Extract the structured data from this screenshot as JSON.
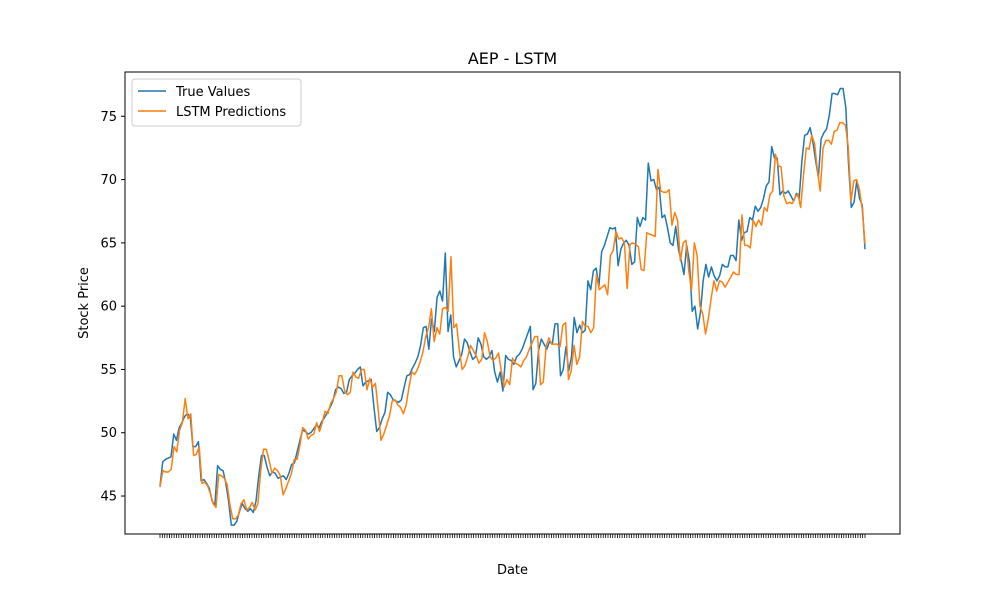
{
  "chart_data": {
    "type": "line",
    "title": "AEP - LSTM",
    "xlabel": "Date",
    "ylabel": "Stock Price",
    "ylim": [
      42.0,
      78.5
    ],
    "yticks": [
      45,
      50,
      55,
      60,
      65,
      70,
      75
    ],
    "grid": false,
    "legend_position": "top-left",
    "x_tick_count": 300,
    "series": [
      {
        "name": "True Values",
        "color": "#1f77b4",
        "values": [
          45.8,
          47.7,
          47.9,
          48.0,
          48.1,
          49.9,
          49.4,
          50.4,
          50.8,
          51.3,
          51.5,
          51.3,
          48.9,
          48.9,
          49.3,
          46.2,
          46.3,
          46.0,
          45.6,
          44.6,
          44.3,
          47.4,
          47.1,
          47.0,
          46.0,
          44.6,
          42.7,
          42.7,
          43.0,
          43.8,
          44.4,
          44.0,
          43.8,
          44.0,
          43.7,
          44.6,
          46.6,
          48.2,
          48.2,
          47.3,
          46.6,
          46.9,
          46.8,
          46.4,
          46.5,
          46.6,
          46.3,
          46.8,
          47.5,
          47.6,
          48.5,
          49.4,
          50.2,
          50.1,
          49.9,
          50.0,
          50.3,
          50.6,
          50.4,
          50.9,
          51.2,
          51.6,
          52.0,
          52.5,
          53.4,
          53.6,
          53.5,
          53.1,
          53.2,
          54.2,
          54.5,
          54.7,
          55.0,
          55.2,
          53.7,
          54.0,
          54.1,
          54.2,
          52.0,
          50.1,
          50.4,
          51.1,
          51.6,
          53.2,
          53.0,
          52.6,
          52.5,
          52.4,
          52.6,
          53.6,
          54.5,
          54.6,
          55.1,
          55.5,
          56.0,
          56.9,
          58.3,
          58.4,
          56.6,
          59.0,
          58.0,
          60.7,
          61.2,
          60.4,
          64.2,
          58.0,
          59.3,
          56.0,
          55.2,
          55.7,
          56.2,
          57.4,
          57.1,
          56.4,
          55.8,
          56.0,
          57.5,
          57.0,
          56.0,
          55.8,
          56.0,
          56.5,
          54.8,
          54.0,
          54.8,
          53.3,
          56.1,
          55.8,
          55.7,
          55.4,
          56.0,
          56.2,
          56.6,
          57.2,
          57.8,
          58.4,
          53.4,
          53.9,
          56.5,
          57.4,
          57.0,
          56.6,
          57.2,
          57.0,
          58.6,
          58.6,
          54.5,
          55.0,
          56.8,
          54.9,
          56.0,
          59.1,
          57.9,
          58.5,
          57.9,
          58.1,
          62.0,
          61.3,
          62.8,
          63.0,
          61.6,
          64.3,
          64.8,
          65.5,
          66.2,
          66.1,
          66.2,
          63.2,
          64.5,
          65.0,
          65.2,
          64.8,
          63.3,
          63.5,
          67.0,
          66.3,
          67.0,
          66.8,
          71.3,
          69.9,
          70.0,
          69.2,
          69.4,
          67.0,
          67.2,
          66.2,
          65.0,
          64.8,
          66.3,
          64.5,
          63.6,
          62.5,
          64.8,
          63.5,
          59.6,
          60.0,
          58.2,
          59.5,
          62.0,
          63.3,
          62.3,
          63.1,
          62.4,
          62.0,
          62.4,
          63.3,
          63.1,
          63.1,
          64.0,
          64.0,
          63.6,
          66.8,
          65.2,
          65.8,
          65.9,
          67.0,
          66.8,
          67.9,
          67.5,
          67.8,
          68.5,
          69.5,
          69.8,
          72.6,
          71.7,
          71.7,
          68.8,
          69.1,
          68.9,
          69.1,
          68.7,
          68.3,
          68.9,
          68.5,
          71.5,
          73.5,
          73.6,
          74.1,
          73.0,
          71.5,
          70.2,
          73.2,
          73.7,
          74.0,
          75.1,
          76.8,
          76.8,
          76.7,
          77.2,
          77.2,
          75.7,
          71.2,
          67.8,
          68.2,
          69.9,
          68.5,
          68.0,
          64.5
        ],
        "note": ""
      },
      {
        "name": "LSTM Predictions",
        "color": "#ff7f0e",
        "values": [
          45.7,
          47.0,
          46.9,
          46.9,
          47.1,
          48.9,
          48.5,
          50.2,
          50.8,
          52.7,
          51.1,
          51.5,
          48.2,
          48.3,
          48.9,
          46.0,
          46.1,
          45.8,
          45.2,
          44.4,
          44.1,
          46.7,
          46.6,
          46.4,
          45.9,
          44.3,
          43.2,
          43.2,
          43.5,
          44.4,
          44.7,
          43.9,
          44.1,
          44.5,
          43.9,
          44.4,
          47.0,
          48.7,
          48.7,
          47.8,
          46.8,
          47.2,
          47.0,
          46.6,
          45.1,
          45.6,
          46.2,
          46.8,
          47.9,
          47.9,
          49.0,
          50.4,
          50.2,
          49.5,
          49.8,
          49.9,
          50.8,
          50.1,
          50.8,
          51.7,
          51.5,
          52.3,
          52.7,
          53.2,
          54.5,
          54.5,
          53.3,
          53.0,
          53.2,
          54.8,
          54.4,
          54.3,
          55.0,
          55.0,
          53.4,
          54.3,
          53.6,
          53.9,
          51.8,
          49.4,
          49.9,
          50.6,
          51.3,
          52.5,
          52.6,
          52.2,
          52.0,
          51.5,
          52.2,
          53.6,
          54.8,
          54.6,
          55.0,
          55.6,
          56.4,
          57.6,
          58.3,
          59.8,
          57.2,
          58.3,
          57.8,
          59.8,
          59.9,
          59.6,
          63.9,
          58.3,
          58.6,
          56.5,
          55.0,
          55.3,
          56.0,
          56.9,
          56.5,
          56.1,
          55.5,
          55.8,
          57.9,
          57.2,
          56.0,
          55.7,
          55.9,
          56.3,
          54.9,
          53.6,
          54.2,
          53.8,
          55.9,
          55.5,
          55.4,
          55.2,
          55.7,
          56.0,
          56.6,
          57.1,
          57.6,
          57.6,
          53.8,
          54.0,
          56.8,
          57.5,
          57.0,
          57.0,
          57.0,
          56.8,
          58.5,
          58.7,
          54.2,
          54.9,
          56.9,
          55.4,
          56.0,
          58.8,
          58.4,
          58.4,
          57.9,
          58.3,
          62.5,
          61.3,
          61.5,
          61.7,
          60.9,
          64.0,
          64.4,
          65.9,
          65.3,
          65.4,
          65.0,
          61.4,
          64.9,
          65.0,
          64.9,
          64.7,
          62.9,
          62.8,
          65.8,
          65.7,
          65.6,
          65.5,
          70.8,
          69.1,
          69.0,
          69.0,
          69.2,
          66.4,
          67.4,
          66.8,
          63.6,
          65.0,
          65.2,
          62.8,
          61.3,
          65.0,
          64.0,
          60.0,
          59.4,
          57.8,
          59.0,
          60.6,
          62.0,
          61.2,
          62.0,
          61.9,
          61.5,
          61.9,
          62.3,
          62.7,
          62.5,
          62.5,
          67.2,
          64.8,
          64.8,
          64.6,
          66.8,
          66.3,
          66.8,
          66.4,
          67.8,
          67.5,
          68.8,
          69.1,
          72.0,
          71.1,
          71.0,
          68.7,
          68.1,
          68.2,
          68.1,
          68.6,
          68.9,
          67.8,
          70.3,
          72.5,
          72.4,
          73.5,
          72.8,
          70.7,
          69.1,
          72.5,
          73.1,
          73.1,
          72.8,
          73.8,
          73.9,
          74.5,
          74.5,
          74.3,
          72.6,
          68.3,
          69.9,
          70.0,
          69.2,
          67.7,
          64.9
        ],
        "note": ""
      }
    ]
  }
}
